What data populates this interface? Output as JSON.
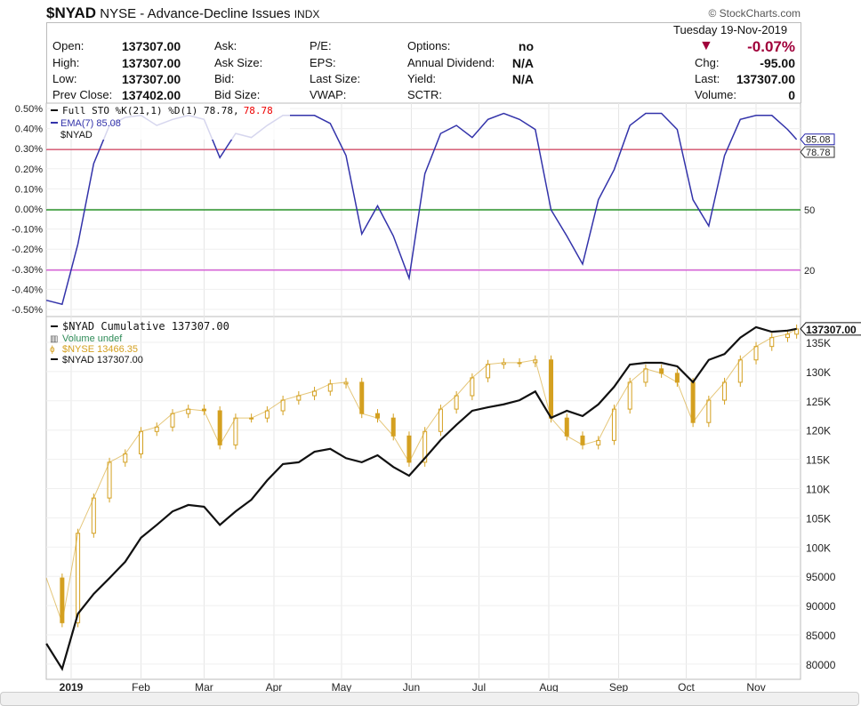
{
  "header": {
    "symbol": "$NYAD",
    "name": "NYSE - Advance-Decline Issues",
    "exchange": "INDX",
    "copyright": "© StockCharts.com",
    "date": "Tuesday  19-Nov-2019",
    "change_pct": "-0.07%",
    "direction_icon": "triangle-down",
    "down_color": "#a0003a",
    "fields": [
      {
        "label": "Open:",
        "value": "137307.00"
      },
      {
        "label": "High:",
        "value": "137307.00"
      },
      {
        "label": "Low:",
        "value": "137307.00"
      },
      {
        "label": "Prev Close:",
        "value": "137402.00"
      }
    ],
    "fields2": [
      "Ask:",
      "Ask Size:",
      "Bid:",
      "Bid Size:"
    ],
    "fields3": [
      "P/E:",
      "EPS:",
      "Last Size:",
      "VWAP:"
    ],
    "fields4": [
      {
        "label": "Options:",
        "value": "no"
      },
      {
        "label": "Annual Dividend:",
        "value": "N/A"
      },
      {
        "label": "Yield:",
        "value": "N/A"
      },
      {
        "label": "SCTR:",
        "value": ""
      }
    ],
    "fields5": [
      {
        "label": "Chg:",
        "value": "-95.00"
      },
      {
        "label": "Last:",
        "value": "137307.00"
      },
      {
        "label": "Volume:",
        "value": "0"
      }
    ]
  },
  "chart_data": [
    {
      "type": "line",
      "panel": "indicator",
      "legend": {
        "sto": "Full STO %K(21,1) %D(1) 78.78,",
        "sto_red": "78.78",
        "ema": "EMA(7) 85.08",
        "symbol": "$NYAD"
      },
      "left_ticks": [
        "0.50%",
        "0.40%",
        "0.30%",
        "0.20%",
        "0.10%",
        "0.00%",
        "-0.10%",
        "-0.20%",
        "-0.30%",
        "-0.40%",
        "-0.50%"
      ],
      "right_ticks": [
        {
          "value": 50,
          "label": "50"
        },
        {
          "value": 20,
          "label": "20"
        }
      ],
      "badges": [
        {
          "value": 85.08,
          "label": "85.08",
          "color": "#2222aa"
        },
        {
          "value": 78.78,
          "label": "78.78",
          "color": "#333333"
        }
      ],
      "hlines": [
        {
          "value": 80,
          "color": "#d03050"
        },
        {
          "value": 50,
          "color": "#008000"
        },
        {
          "value": 20,
          "color": "#cc33cc"
        }
      ],
      "ylim": [
        0,
        100
      ],
      "line_color": "#3333aa",
      "dates": [
        "2018-12-21",
        "2018-12-28",
        "2019-01-04",
        "2019-01-11",
        "2019-01-18",
        "2019-01-25",
        "2019-02-01",
        "2019-02-08",
        "2019-02-15",
        "2019-02-22",
        "2019-03-01",
        "2019-03-08",
        "2019-03-15",
        "2019-03-22",
        "2019-03-29",
        "2019-04-05",
        "2019-04-12",
        "2019-04-19",
        "2019-04-26",
        "2019-05-03",
        "2019-05-10",
        "2019-05-17",
        "2019-05-24",
        "2019-05-31",
        "2019-06-07",
        "2019-06-14",
        "2019-06-21",
        "2019-06-28",
        "2019-07-05",
        "2019-07-12",
        "2019-07-19",
        "2019-07-26",
        "2019-08-02",
        "2019-08-09",
        "2019-08-16",
        "2019-08-23",
        "2019-08-30",
        "2019-09-06",
        "2019-09-13",
        "2019-09-20",
        "2019-09-27",
        "2019-10-04",
        "2019-10-11",
        "2019-10-18",
        "2019-10-25",
        "2019-11-01",
        "2019-11-08",
        "2019-11-15",
        "2019-11-19"
      ],
      "values": [
        5,
        3,
        33,
        73,
        92,
        96,
        97,
        92,
        95,
        97,
        95,
        76,
        88,
        86,
        92,
        97,
        97,
        97,
        93,
        77,
        38,
        52,
        37,
        16,
        68,
        88,
        92,
        86,
        95,
        98,
        95,
        90,
        50,
        37,
        23,
        55,
        70,
        92,
        98,
        98,
        90,
        55,
        42,
        77,
        95,
        97,
        97,
        90,
        85
      ]
    },
    {
      "type": "line",
      "panel": "price",
      "legend": {
        "main": "$NYAD Cumulative 137307.00",
        "volume": "Volume undef",
        "nyse": "$NYSE 13466.35",
        "nyad": "$NYAD 137307.00"
      },
      "colors": {
        "nyad": "#111111",
        "nyse": "#d4a020",
        "volume": "#2e8b57"
      },
      "badge": "137307.00",
      "right_ticks": [
        {
          "value": 135000,
          "label": "135K"
        },
        {
          "value": 130000,
          "label": "130K"
        },
        {
          "value": 125000,
          "label": "125K"
        },
        {
          "value": 120000,
          "label": "120K"
        },
        {
          "value": 115000,
          "label": "115K"
        },
        {
          "value": 110000,
          "label": "110K"
        },
        {
          "value": 105000,
          "label": "105K"
        },
        {
          "value": 100000,
          "label": "100K"
        },
        {
          "value": 95000,
          "label": "95000"
        },
        {
          "value": 90000,
          "label": "90000"
        },
        {
          "value": 85000,
          "label": "85000"
        },
        {
          "value": 80000,
          "label": "80000"
        }
      ],
      "x_ticks": [
        {
          "date": "2019-01-01",
          "label": "2019",
          "bold": true
        },
        {
          "date": "2019-02-01",
          "label": "Feb"
        },
        {
          "date": "2019-03-01",
          "label": "Mar"
        },
        {
          "date": "2019-04-01",
          "label": "Apr"
        },
        {
          "date": "2019-05-01",
          "label": "May"
        },
        {
          "date": "2019-06-01",
          "label": "Jun"
        },
        {
          "date": "2019-07-01",
          "label": "Jul"
        },
        {
          "date": "2019-08-01",
          "label": "Aug"
        },
        {
          "date": "2019-09-01",
          "label": "Sep"
        },
        {
          "date": "2019-10-01",
          "label": "Oct"
        },
        {
          "date": "2019-11-01",
          "label": "Nov"
        }
      ],
      "nyad_values": [
        83500,
        79200,
        88600,
        92000,
        94700,
        97500,
        101600,
        103800,
        106100,
        107200,
        106900,
        103800,
        106100,
        108100,
        111400,
        114200,
        114500,
        116300,
        116800,
        115200,
        114500,
        115700,
        113700,
        112200,
        115200,
        118300,
        120900,
        123300,
        123900,
        124400,
        125100,
        126600,
        122100,
        123300,
        122400,
        124400,
        127400,
        131200,
        131500,
        131500,
        130900,
        128200,
        132000,
        133000,
        135800,
        137600,
        136800,
        137000,
        137307
      ],
      "nyse_values": [
        11240,
        10840,
        11640,
        11955,
        12275,
        12350,
        12550,
        12590,
        12710,
        12750,
        12735,
        12430,
        12670,
        12670,
        12735,
        12830,
        12870,
        12910,
        12975,
        12990,
        12710,
        12670,
        12510,
        12275,
        12550,
        12750,
        12870,
        13030,
        13150,
        13165,
        13165,
        13190,
        12670,
        12510,
        12430,
        12470,
        12750,
        12990,
        13110,
        13070,
        12990,
        12630,
        12830,
        12990,
        13190,
        13310,
        13390,
        13420,
        13466.35
      ]
    }
  ]
}
